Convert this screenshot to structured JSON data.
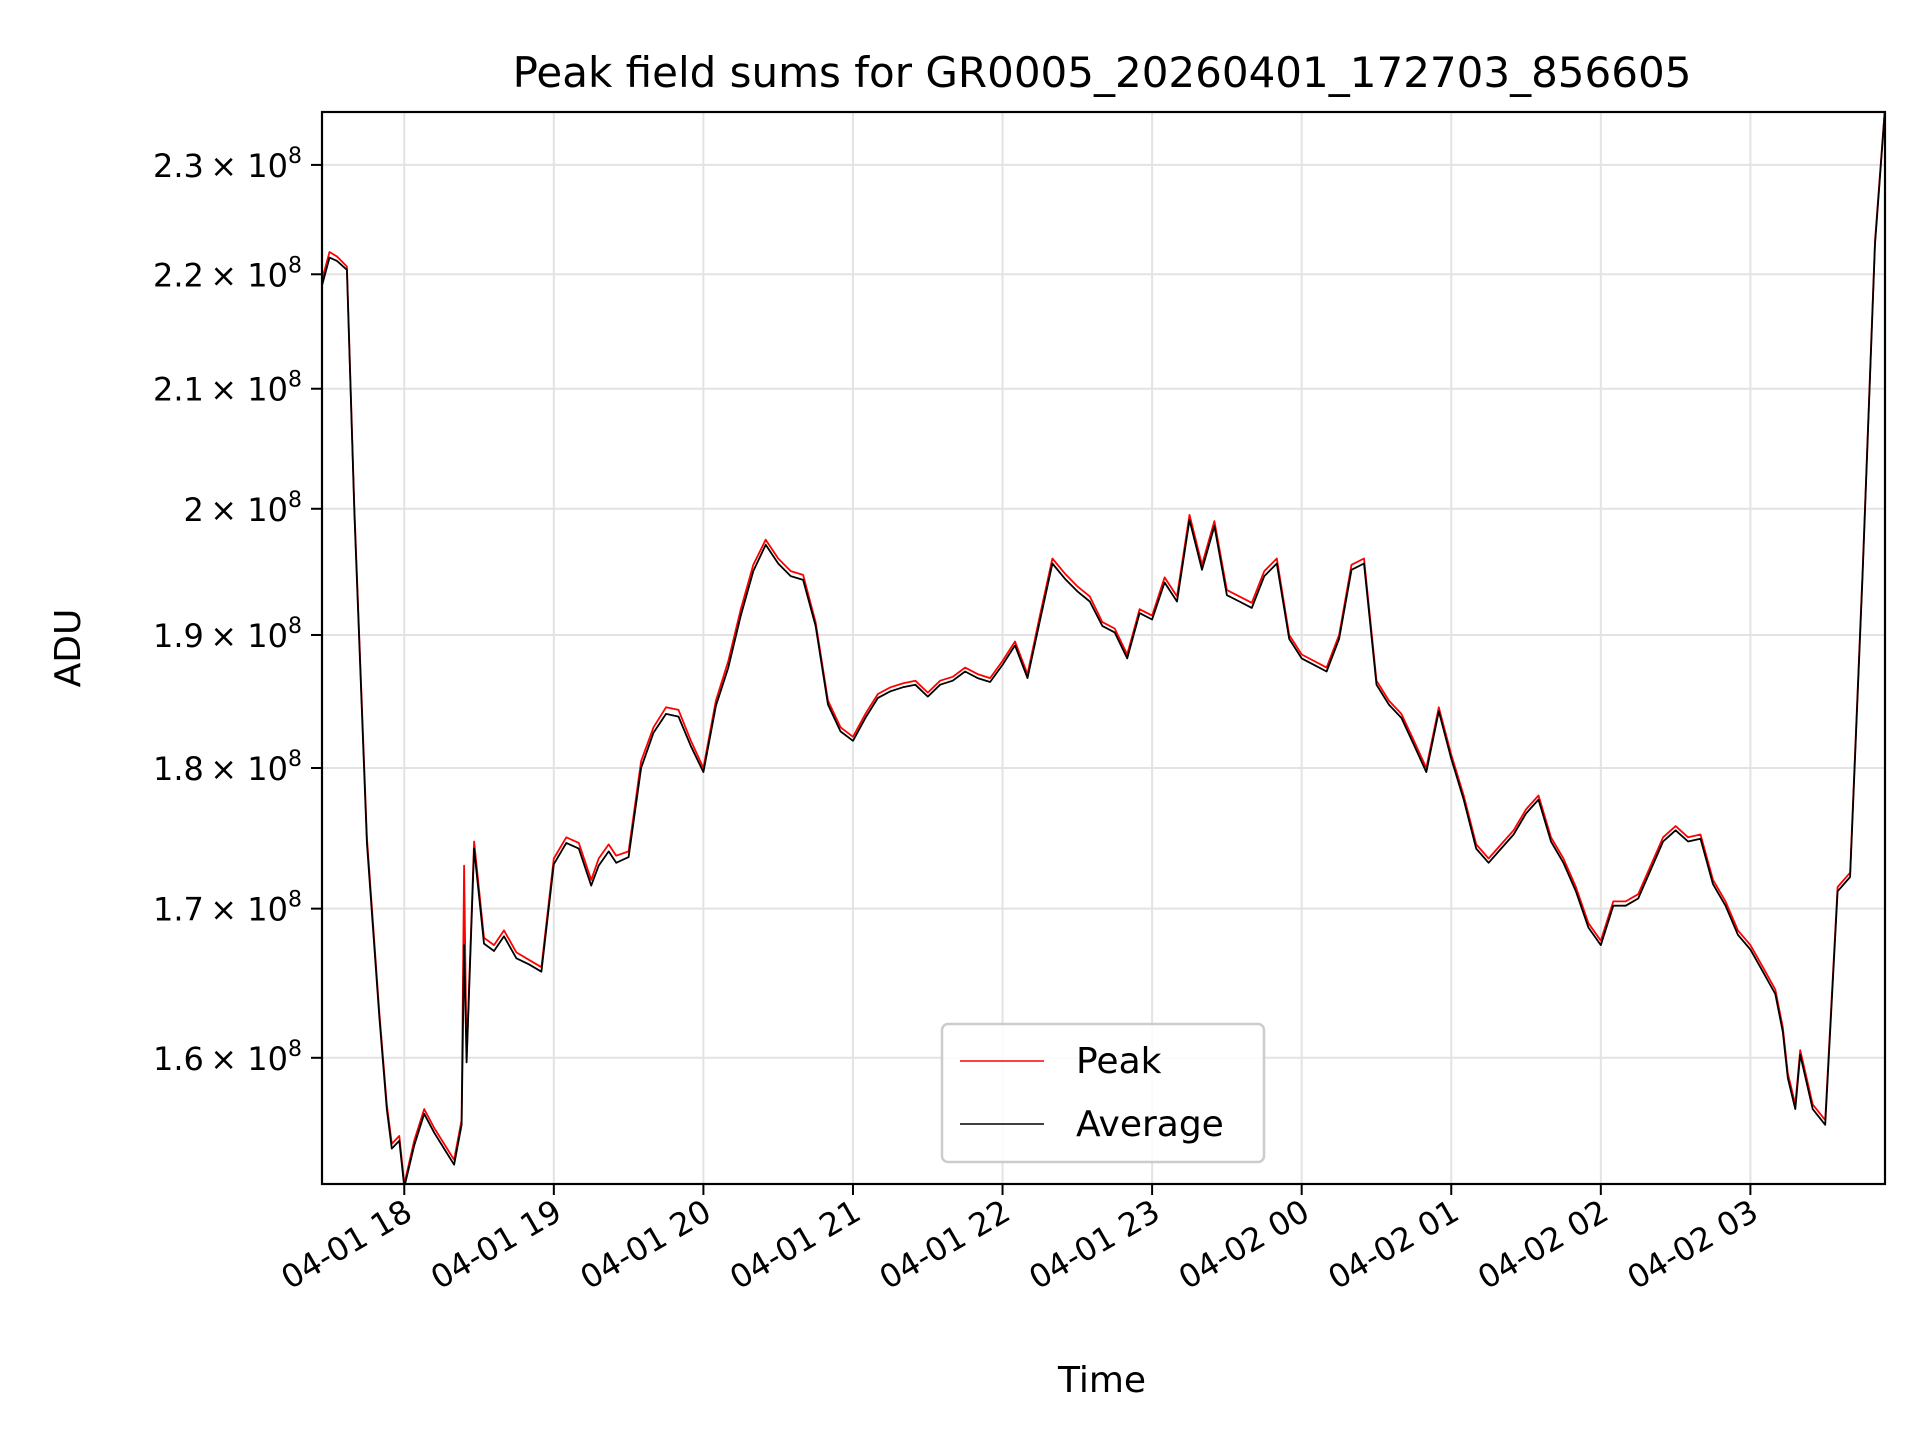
{
  "chart_data": {
    "type": "line",
    "title": "Peak field sums for GR0005_20260401_172703_856605",
    "xlabel": "Time",
    "ylabel": "ADU",
    "yscale": "log",
    "grid": true,
    "legend_position": "lower-center",
    "xlim": [
      "2026-04-01 17:27",
      "2026-04-02 03:54"
    ],
    "ylim": [
      152000000,
      235000000
    ],
    "x_ticks": [
      "04-01 18",
      "04-01 19",
      "04-01 20",
      "04-01 21",
      "04-01 22",
      "04-01 23",
      "04-02 00",
      "04-02 01",
      "04-02 02",
      "04-02 03"
    ],
    "y_ticks": [
      {
        "value": 160000000,
        "mantissa": "1.6",
        "label": "1.6×10^8"
      },
      {
        "value": 170000000,
        "mantissa": "1.7",
        "label": "1.7×10^8"
      },
      {
        "value": 180000000,
        "mantissa": "1.8",
        "label": "1.8×10^8"
      },
      {
        "value": 190000000,
        "mantissa": "1.9",
        "label": "1.9×10^8"
      },
      {
        "value": 200000000,
        "mantissa": "2",
        "label": "2×10^8"
      },
      {
        "value": 210000000,
        "mantissa": "2.1",
        "label": "2.1×10^8"
      },
      {
        "value": 220000000,
        "mantissa": "2.2",
        "label": "2.2×10^8"
      },
      {
        "value": 230000000,
        "mantissa": "2.3",
        "label": "2.3×10^8"
      }
    ],
    "y_tick_base": "× 10",
    "y_tick_exponent": "8",
    "x": [
      "2026-04-01 17:27",
      "2026-04-01 17:30",
      "2026-04-01 17:33",
      "2026-04-01 17:37",
      "2026-04-01 17:40",
      "2026-04-01 17:45",
      "2026-04-01 17:50",
      "2026-04-01 17:53",
      "2026-04-01 17:55",
      "2026-04-01 17:58",
      "2026-04-01 18:00",
      "2026-04-01 18:04",
      "2026-04-01 18:08",
      "2026-04-01 18:12",
      "2026-04-01 18:16",
      "2026-04-01 18:20",
      "2026-04-01 18:23",
      "2026-04-01 18:24",
      "2026-04-01 18:25",
      "2026-04-01 18:28",
      "2026-04-01 18:32",
      "2026-04-01 18:36",
      "2026-04-01 18:40",
      "2026-04-01 18:45",
      "2026-04-01 18:50",
      "2026-04-01 18:55",
      "2026-04-01 19:00",
      "2026-04-01 19:05",
      "2026-04-01 19:10",
      "2026-04-01 19:15",
      "2026-04-01 19:18",
      "2026-04-01 19:22",
      "2026-04-01 19:25",
      "2026-04-01 19:30",
      "2026-04-01 19:35",
      "2026-04-01 19:40",
      "2026-04-01 19:45",
      "2026-04-01 19:50",
      "2026-04-01 19:55",
      "2026-04-01 20:00",
      "2026-04-01 20:05",
      "2026-04-01 20:10",
      "2026-04-01 20:15",
      "2026-04-01 20:20",
      "2026-04-01 20:25",
      "2026-04-01 20:30",
      "2026-04-01 20:35",
      "2026-04-01 20:40",
      "2026-04-01 20:45",
      "2026-04-01 20:50",
      "2026-04-01 20:55",
      "2026-04-01 21:00",
      "2026-04-01 21:05",
      "2026-04-01 21:10",
      "2026-04-01 21:15",
      "2026-04-01 21:20",
      "2026-04-01 21:25",
      "2026-04-01 21:30",
      "2026-04-01 21:35",
      "2026-04-01 21:40",
      "2026-04-01 21:45",
      "2026-04-01 21:50",
      "2026-04-01 21:55",
      "2026-04-01 22:00",
      "2026-04-01 22:05",
      "2026-04-01 22:10",
      "2026-04-01 22:15",
      "2026-04-01 22:20",
      "2026-04-01 22:25",
      "2026-04-01 22:30",
      "2026-04-01 22:35",
      "2026-04-01 22:40",
      "2026-04-01 22:45",
      "2026-04-01 22:50",
      "2026-04-01 22:55",
      "2026-04-01 23:00",
      "2026-04-01 23:05",
      "2026-04-01 23:10",
      "2026-04-01 23:15",
      "2026-04-01 23:20",
      "2026-04-01 23:25",
      "2026-04-01 23:30",
      "2026-04-01 23:35",
      "2026-04-01 23:40",
      "2026-04-01 23:45",
      "2026-04-01 23:50",
      "2026-04-01 23:55",
      "2026-04-02 00:00",
      "2026-04-02 00:05",
      "2026-04-02 00:10",
      "2026-04-02 00:15",
      "2026-04-02 00:20",
      "2026-04-02 00:25",
      "2026-04-02 00:30",
      "2026-04-02 00:35",
      "2026-04-02 00:40",
      "2026-04-02 00:45",
      "2026-04-02 00:50",
      "2026-04-02 00:55",
      "2026-04-02 01:00",
      "2026-04-02 01:05",
      "2026-04-02 01:10",
      "2026-04-02 01:15",
      "2026-04-02 01:20",
      "2026-04-02 01:25",
      "2026-04-02 01:30",
      "2026-04-02 01:35",
      "2026-04-02 01:40",
      "2026-04-02 01:45",
      "2026-04-02 01:50",
      "2026-04-02 01:55",
      "2026-04-02 02:00",
      "2026-04-02 02:05",
      "2026-04-02 02:10",
      "2026-04-02 02:15",
      "2026-04-02 02:20",
      "2026-04-02 02:25",
      "2026-04-02 02:30",
      "2026-04-02 02:35",
      "2026-04-02 02:40",
      "2026-04-02 02:45",
      "2026-04-02 02:50",
      "2026-04-02 02:55",
      "2026-04-02 03:00",
      "2026-04-02 03:05",
      "2026-04-02 03:10",
      "2026-04-02 03:13",
      "2026-04-02 03:15",
      "2026-04-02 03:18",
      "2026-04-02 03:20",
      "2026-04-02 03:25",
      "2026-04-02 03:30",
      "2026-04-02 03:35",
      "2026-04-02 03:40",
      "2026-04-02 03:45",
      "2026-04-02 03:50",
      "2026-04-02 03:54"
    ],
    "series": [
      {
        "name": "Peak",
        "color": "#ff0000",
        "values": [
          219500000,
          222000000,
          221600000,
          220700000,
          200000000,
          175000000,
          163000000,
          157000000,
          154500000,
          155000000,
          152000000,
          154700000,
          156700000,
          155500000,
          154500000,
          153500000,
          156000000,
          173000000,
          160000000,
          174700000,
          168000000,
          167500000,
          168500000,
          167000000,
          166500000,
          166000000,
          173500000,
          175000000,
          174600000,
          172000000,
          173500000,
          174500000,
          173700000,
          174000000,
          180500000,
          183000000,
          184500000,
          184300000,
          182000000,
          180000000,
          185000000,
          188000000,
          192000000,
          195500000,
          197500000,
          196000000,
          195000000,
          194700000,
          191000000,
          185000000,
          183000000,
          182300000,
          184000000,
          185500000,
          186000000,
          186300000,
          186500000,
          185600000,
          186500000,
          186800000,
          187500000,
          187000000,
          186700000,
          188000000,
          189500000,
          187000000,
          191500000,
          196000000,
          194800000,
          193800000,
          193000000,
          191000000,
          190500000,
          188500000,
          192000000,
          191500000,
          194500000,
          193000000,
          199500000,
          195500000,
          199000000,
          193500000,
          193000000,
          192500000,
          195000000,
          196000000,
          190000000,
          188500000,
          188000000,
          187500000,
          190000000,
          195500000,
          196000000,
          186500000,
          185000000,
          184000000,
          182000000,
          180000000,
          184500000,
          181000000,
          178000000,
          174500000,
          173500000,
          174500000,
          175500000,
          177000000,
          178000000,
          175000000,
          173500000,
          171500000,
          169000000,
          167800000,
          170500000,
          170500000,
          171000000,
          173000000,
          175000000,
          175800000,
          175000000,
          175200000,
          172000000,
          170500000,
          168500000,
          167500000,
          166000000,
          164500000,
          162000000,
          159000000,
          157000000,
          160500000,
          157000000,
          156000000,
          171500000,
          172500000,
          195000000,
          223000000,
          235500000
        ]
      },
      {
        "name": "Average",
        "color": "#000000",
        "values": [
          219000000,
          221500000,
          221200000,
          220400000,
          199600000,
          174600000,
          162700000,
          156700000,
          154200000,
          154700000,
          151800000,
          154400000,
          156400000,
          155200000,
          154200000,
          153200000,
          155700000,
          167500000,
          159700000,
          174200000,
          167600000,
          167100000,
          168100000,
          166600000,
          166200000,
          165700000,
          173100000,
          174600000,
          174200000,
          171600000,
          173000000,
          174000000,
          173200000,
          173600000,
          180000000,
          182600000,
          184000000,
          183800000,
          181600000,
          179700000,
          184600000,
          187500000,
          191500000,
          195000000,
          197100000,
          195600000,
          194600000,
          194300000,
          190700000,
          184700000,
          182700000,
          182000000,
          183700000,
          185200000,
          185700000,
          186000000,
          186200000,
          185300000,
          186200000,
          186500000,
          187200000,
          186700000,
          186400000,
          187700000,
          189200000,
          186700000,
          191100000,
          195600000,
          194400000,
          193400000,
          192600000,
          190700000,
          190200000,
          188200000,
          191700000,
          191200000,
          194100000,
          192600000,
          199100000,
          195100000,
          198600000,
          193100000,
          192600000,
          192100000,
          194600000,
          195600000,
          189700000,
          188200000,
          187700000,
          187200000,
          189700000,
          195100000,
          195600000,
          186200000,
          184700000,
          183700000,
          181700000,
          179700000,
          184200000,
          180700000,
          177700000,
          174200000,
          173200000,
          174200000,
          175200000,
          176700000,
          177700000,
          174700000,
          173200000,
          171200000,
          168700000,
          167500000,
          170200000,
          170200000,
          170700000,
          172700000,
          174700000,
          175500000,
          174700000,
          174900000,
          171700000,
          170200000,
          168200000,
          167200000,
          165700000,
          164200000,
          161700000,
          158700000,
          156700000,
          160200000,
          156700000,
          155700000,
          171200000,
          172200000,
          194700000,
          222700000,
          235300000
        ]
      }
    ]
  }
}
